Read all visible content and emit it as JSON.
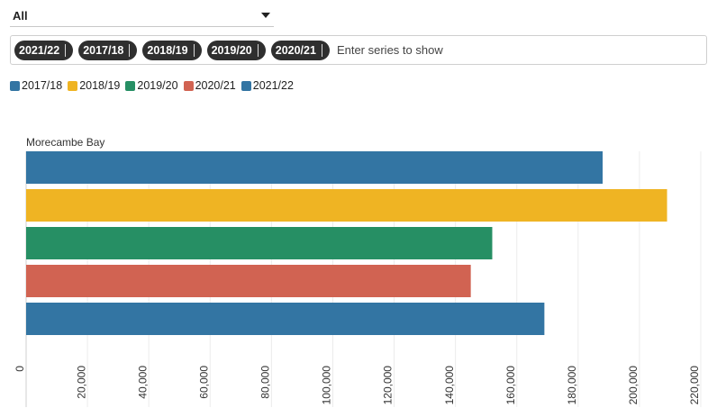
{
  "filter": {
    "selected": "All"
  },
  "series_input": {
    "chips": [
      "2021/22",
      "2017/18",
      "2018/19",
      "2019/20",
      "2020/21"
    ],
    "placeholder": "Enter series to show"
  },
  "legend": [
    {
      "label": "2017/18",
      "color": "#3375a3"
    },
    {
      "label": "2018/19",
      "color": "#efb423"
    },
    {
      "label": "2019/20",
      "color": "#268f64"
    },
    {
      "label": "2020/21",
      "color": "#d16352"
    },
    {
      "label": "2021/22",
      "color": "#3375a3"
    }
  ],
  "chart_data": {
    "type": "bar",
    "orientation": "horizontal",
    "categories": [
      "Morecambe Bay"
    ],
    "series": [
      {
        "name": "2017/18",
        "values": [
          188000
        ],
        "color": "#3375a3"
      },
      {
        "name": "2018/19",
        "values": [
          209000
        ],
        "color": "#efb423"
      },
      {
        "name": "2019/20",
        "values": [
          152000
        ],
        "color": "#268f64"
      },
      {
        "name": "2020/21",
        "values": [
          145000
        ],
        "color": "#d16352"
      },
      {
        "name": "2021/22",
        "values": [
          169000
        ],
        "color": "#3375a3"
      }
    ],
    "xlim": [
      0,
      220000
    ],
    "xticks": [
      0,
      20000,
      40000,
      60000,
      80000,
      100000,
      120000,
      140000,
      160000,
      180000,
      200000,
      220000
    ],
    "xtick_labels": [
      "0",
      "20,000",
      "40,000",
      "60,000",
      "80,000",
      "100,000",
      "120,000",
      "140,000",
      "160,000",
      "180,000",
      "200,000",
      "220,000"
    ],
    "grid": "vertical",
    "legend_position": "top-left"
  }
}
